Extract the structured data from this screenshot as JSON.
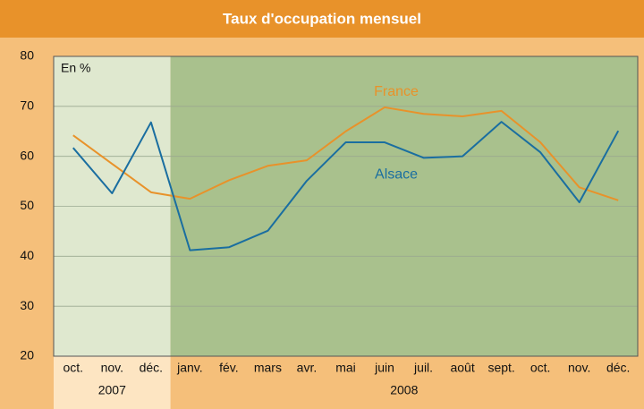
{
  "chart_data": {
    "type": "line",
    "title": "Taux d'occupation mensuel",
    "annotation": "En %",
    "categories": [
      "oct.",
      "nov.",
      "déc.",
      "janv.",
      "fév.",
      "mars",
      "avr.",
      "mai",
      "juin",
      "juil.",
      "août",
      "sept.",
      "oct.",
      "nov.",
      "déc."
    ],
    "years": [
      "2007",
      "2007",
      "2007",
      "2008",
      "2008",
      "2008",
      "2008",
      "2008",
      "2008",
      "2008",
      "2008",
      "2008",
      "2008",
      "2008",
      "2008"
    ],
    "series": [
      {
        "name": "France",
        "color": "#e8922a",
        "values": [
          64.2,
          58.5,
          52.8,
          51.5,
          55.2,
          58.1,
          59.2,
          65,
          69.8,
          68.5,
          68,
          69.1,
          62.8,
          53.8,
          51.2
        ]
      },
      {
        "name": "Alsace",
        "color": "#1a6ea0",
        "values": [
          61.7,
          52.6,
          66.8,
          41.2,
          41.8,
          45.1,
          55.1,
          62.8,
          62.8,
          59.7,
          60,
          66.9,
          60.8,
          50.8,
          65.1
        ]
      }
    ],
    "ylim": [
      20,
      80
    ],
    "yticks": [
      20,
      30,
      40,
      50,
      60,
      70,
      80
    ],
    "grid": true
  }
}
